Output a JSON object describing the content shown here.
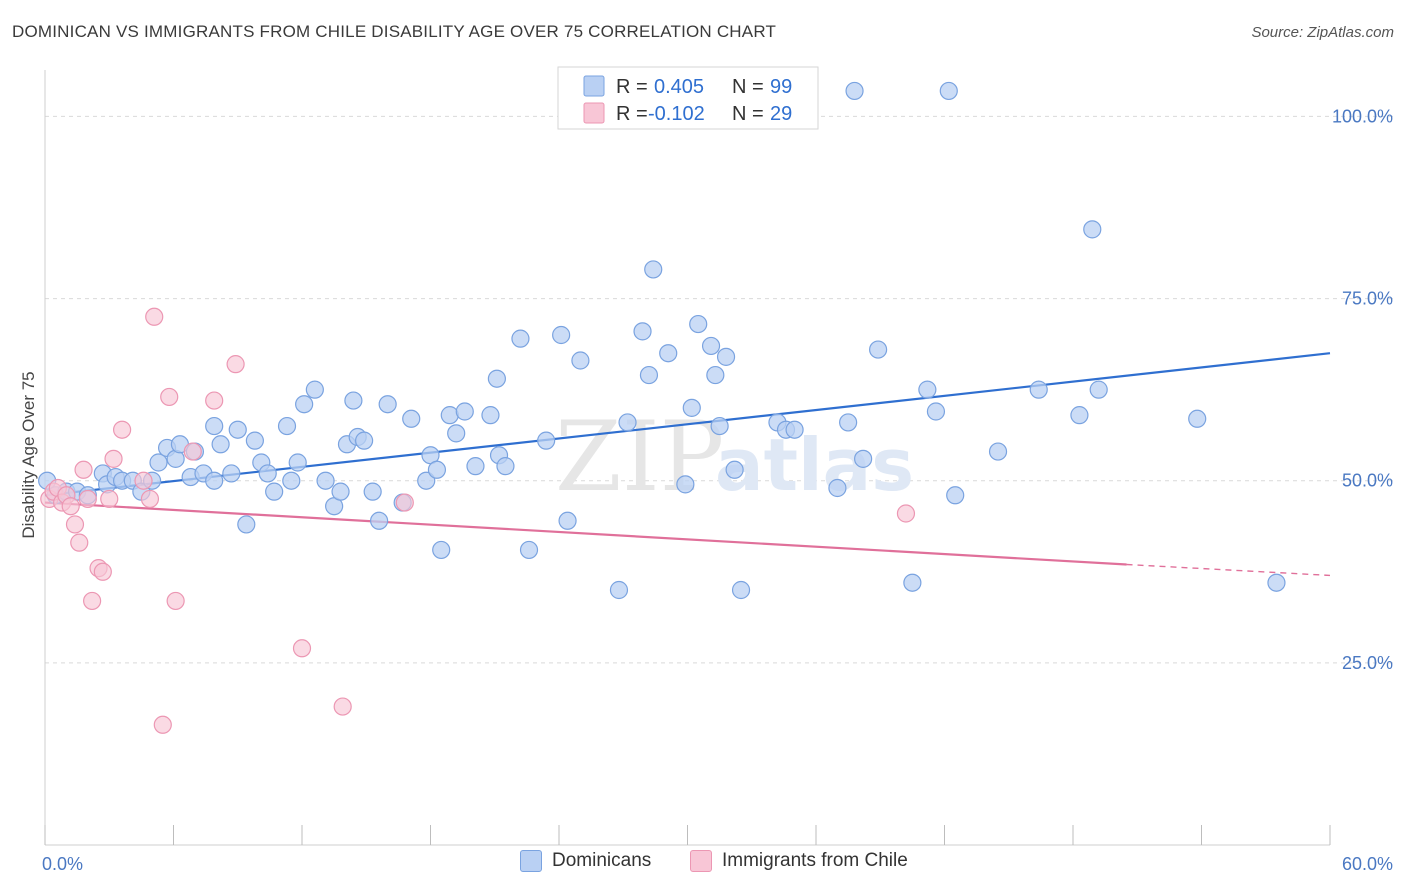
{
  "title": "DOMINICAN VS IMMIGRANTS FROM CHILE DISABILITY AGE OVER 75 CORRELATION CHART",
  "source": "Source: ZipAtlas.com",
  "watermark": {
    "zip": "ZIP",
    "atlas": "atlas"
  },
  "colors": {
    "blue_fill": "#b9d0f3",
    "blue_stroke": "#7aa3e0",
    "blue_line": "#2f6fd0",
    "pink_fill": "#f8c6d6",
    "pink_stroke": "#ec97b3",
    "pink_line": "#e0709a",
    "grid": "#d9d9d9",
    "tick_text": "#4a78c2"
  },
  "legend": {
    "r_label": "R =",
    "n_label": "N =",
    "rows": [
      {
        "r": "0.405",
        "n": "99"
      },
      {
        "r": "-0.102",
        "n": "29"
      }
    ]
  },
  "chart_data": {
    "type": "scatter",
    "title": "DOMINICAN VS IMMIGRANTS FROM CHILE DISABILITY AGE OVER 75 CORRELATION CHART",
    "xlabel": "",
    "ylabel": "Disability Age Over 75",
    "xlim": [
      0,
      60
    ],
    "ylim": [
      0,
      105
    ],
    "x_tick_labels": [
      "0.0%",
      "60.0%"
    ],
    "y_ticks": [
      {
        "value": 25,
        "label": "25.0%"
      },
      {
        "value": 50,
        "label": "50.0%"
      },
      {
        "value": 75,
        "label": "75.0%"
      },
      {
        "value": 100,
        "label": "100.0%"
      }
    ],
    "grid": true,
    "legend_position": "top-center",
    "series": [
      {
        "name": "Dominicans",
        "color": "#b9d0f3",
        "trend": {
          "x": [
            0,
            60
          ],
          "y": [
            48.0,
            67.5
          ]
        },
        "points": [
          [
            0.1,
            50.0
          ],
          [
            0.5,
            48.0
          ],
          [
            1.0,
            48.5
          ],
          [
            1.5,
            48.5
          ],
          [
            2.0,
            48.0
          ],
          [
            2.7,
            51.0
          ],
          [
            2.9,
            49.5
          ],
          [
            3.3,
            50.5
          ],
          [
            3.6,
            50.0
          ],
          [
            4.1,
            50.0
          ],
          [
            4.5,
            48.5
          ],
          [
            5.0,
            50.0
          ],
          [
            5.3,
            52.5
          ],
          [
            5.7,
            54.5
          ],
          [
            6.1,
            53.0
          ],
          [
            6.3,
            55.0
          ],
          [
            6.8,
            50.5
          ],
          [
            7.0,
            54.0
          ],
          [
            7.4,
            51.0
          ],
          [
            7.9,
            50.0
          ],
          [
            7.9,
            57.5
          ],
          [
            8.2,
            55.0
          ],
          [
            8.7,
            51.0
          ],
          [
            9.0,
            57.0
          ],
          [
            9.4,
            44.0
          ],
          [
            9.8,
            55.5
          ],
          [
            10.1,
            52.5
          ],
          [
            10.4,
            51.0
          ],
          [
            10.7,
            48.5
          ],
          [
            11.3,
            57.5
          ],
          [
            11.5,
            50.0
          ],
          [
            11.8,
            52.5
          ],
          [
            12.1,
            60.5
          ],
          [
            12.6,
            62.5
          ],
          [
            13.1,
            50.0
          ],
          [
            13.5,
            46.5
          ],
          [
            13.8,
            48.5
          ],
          [
            14.1,
            55.0
          ],
          [
            14.4,
            61.0
          ],
          [
            14.6,
            56.0
          ],
          [
            14.9,
            55.5
          ],
          [
            15.3,
            48.5
          ],
          [
            15.6,
            44.5
          ],
          [
            16.0,
            60.5
          ],
          [
            16.7,
            47.0
          ],
          [
            17.1,
            58.5
          ],
          [
            17.8,
            50.0
          ],
          [
            18.0,
            53.5
          ],
          [
            18.3,
            51.5
          ],
          [
            18.5,
            40.5
          ],
          [
            18.9,
            59.0
          ],
          [
            19.2,
            56.5
          ],
          [
            19.6,
            59.5
          ],
          [
            20.1,
            52.0
          ],
          [
            20.8,
            59.0
          ],
          [
            21.1,
            64.0
          ],
          [
            21.2,
            53.5
          ],
          [
            21.5,
            52.0
          ],
          [
            22.2,
            69.5
          ],
          [
            22.6,
            40.5
          ],
          [
            23.4,
            55.5
          ],
          [
            24.1,
            70.0
          ],
          [
            24.4,
            44.5
          ],
          [
            25.0,
            66.5
          ],
          [
            26.8,
            35.0
          ],
          [
            27.2,
            58.0
          ],
          [
            27.9,
            70.5
          ],
          [
            28.2,
            64.5
          ],
          [
            28.4,
            79.0
          ],
          [
            29.1,
            67.5
          ],
          [
            29.9,
            49.5
          ],
          [
            30.2,
            60.0
          ],
          [
            30.5,
            71.5
          ],
          [
            31.1,
            68.5
          ],
          [
            31.3,
            64.5
          ],
          [
            31.5,
            57.5
          ],
          [
            31.8,
            67.0
          ],
          [
            32.2,
            51.5
          ],
          [
            32.5,
            35.0
          ],
          [
            34.2,
            58.0
          ],
          [
            34.6,
            57.0
          ],
          [
            35.0,
            57.0
          ],
          [
            37.0,
            49.0
          ],
          [
            37.5,
            58.0
          ],
          [
            37.8,
            103.5
          ],
          [
            38.2,
            53.0
          ],
          [
            38.9,
            68.0
          ],
          [
            40.5,
            36.0
          ],
          [
            41.2,
            62.5
          ],
          [
            41.6,
            59.5
          ],
          [
            42.2,
            103.5
          ],
          [
            42.5,
            48.0
          ],
          [
            44.5,
            54.0
          ],
          [
            46.4,
            62.5
          ],
          [
            48.3,
            59.0
          ],
          [
            48.9,
            84.5
          ],
          [
            49.2,
            62.5
          ],
          [
            53.8,
            58.5
          ],
          [
            57.5,
            36.0
          ]
        ]
      },
      {
        "name": "Immigrants from Chile",
        "color": "#f8c6d6",
        "trend": {
          "x": [
            0,
            50.5
          ],
          "y": [
            47.0,
            38.5
          ],
          "dashed_to": [
            60,
            37.0
          ]
        },
        "points": [
          [
            0.2,
            47.5
          ],
          [
            0.4,
            48.5
          ],
          [
            0.6,
            49.0
          ],
          [
            0.8,
            47.0
          ],
          [
            1.0,
            48.0
          ],
          [
            1.2,
            46.5
          ],
          [
            1.4,
            44.0
          ],
          [
            1.6,
            41.5
          ],
          [
            1.8,
            51.5
          ],
          [
            2.0,
            47.5
          ],
          [
            2.2,
            33.5
          ],
          [
            2.5,
            38.0
          ],
          [
            2.7,
            37.5
          ],
          [
            3.0,
            47.5
          ],
          [
            3.2,
            53.0
          ],
          [
            3.6,
            57.0
          ],
          [
            4.6,
            50.0
          ],
          [
            4.9,
            47.5
          ],
          [
            5.1,
            72.5
          ],
          [
            5.5,
            16.5
          ],
          [
            5.8,
            61.5
          ],
          [
            6.1,
            33.5
          ],
          [
            6.9,
            54.0
          ],
          [
            7.9,
            61.0
          ],
          [
            8.9,
            66.0
          ],
          [
            12.0,
            27.0
          ],
          [
            13.9,
            19.0
          ],
          [
            16.8,
            47.0
          ],
          [
            40.2,
            45.5
          ]
        ]
      }
    ]
  },
  "bottom_legend": [
    "Dominicans",
    "Immigrants from Chile"
  ]
}
